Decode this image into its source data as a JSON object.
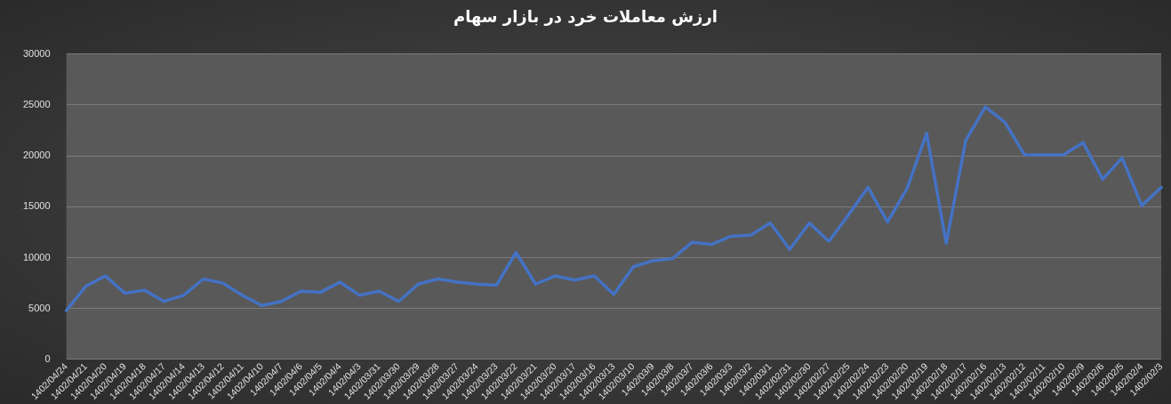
{
  "chart_data": {
    "type": "line",
    "title": "ارزش معاملات خرد در بازار سهام",
    "categories": [
      "1402/04/24",
      "1402/04/21",
      "1402/04/20",
      "1402/04/19",
      "1402/04/18",
      "1402/04/17",
      "1402/04/14",
      "1402/04/13",
      "1402/04/12",
      "1402/04/11",
      "1402/04/10",
      "1402/04/7",
      "1402/04/6",
      "1402/04/5",
      "1402/04/4",
      "1402/04/3",
      "1402/03/31",
      "1402/03/30",
      "1402/03/29",
      "1402/03/28",
      "1402/03/27",
      "1402/03/24",
      "1402/03/23",
      "1402/03/22",
      "1402/03/21",
      "1402/03/20",
      "1402/03/17",
      "1402/03/16",
      "1402/03/13",
      "1402/03/10",
      "1402/03/9",
      "1402/03/8",
      "1402/03/7",
      "1402/03/6",
      "1402/03/3",
      "1402/03/2",
      "1402/03/1",
      "1402/02/31",
      "1402/02/30",
      "1402/02/27",
      "1402/02/25",
      "1402/02/24",
      "1402/02/23",
      "1402/02/20",
      "1402/02/19",
      "1402/02/18",
      "1402/02/17",
      "1402/02/16",
      "1402/02/13",
      "1402/02/12",
      "1402/02/11",
      "1402/02/10",
      "1402/02/9",
      "1402/02/6",
      "1402/02/5",
      "1402/02/4",
      "1402/02/3"
    ],
    "series": [
      {
        "color": "#4472c4",
        "values": [
          4800,
          7200,
          8200,
          6500,
          6800,
          5700,
          6300,
          7900,
          7500,
          6300,
          5300,
          5700,
          6700,
          6600,
          7600,
          6300,
          6700,
          5700,
          7400,
          7900,
          7600,
          7400,
          7300,
          10500,
          7400,
          8200,
          7800,
          8200,
          6400,
          9100,
          9700,
          9900,
          11500,
          11300,
          12100,
          12200,
          13400,
          10800,
          13400,
          11600,
          14200,
          16900,
          13500,
          16800,
          22200,
          11400,
          21500,
          24800,
          23300,
          20100,
          20100,
          20100,
          21300,
          17700,
          19800,
          15100,
          16900
        ]
      }
    ],
    "ylim": [
      0,
      30000
    ],
    "yticks": [
      0,
      5000,
      10000,
      15000,
      20000,
      25000,
      30000
    ],
    "grid": "y",
    "legend": false,
    "marker": "none",
    "line_style": "solid"
  }
}
